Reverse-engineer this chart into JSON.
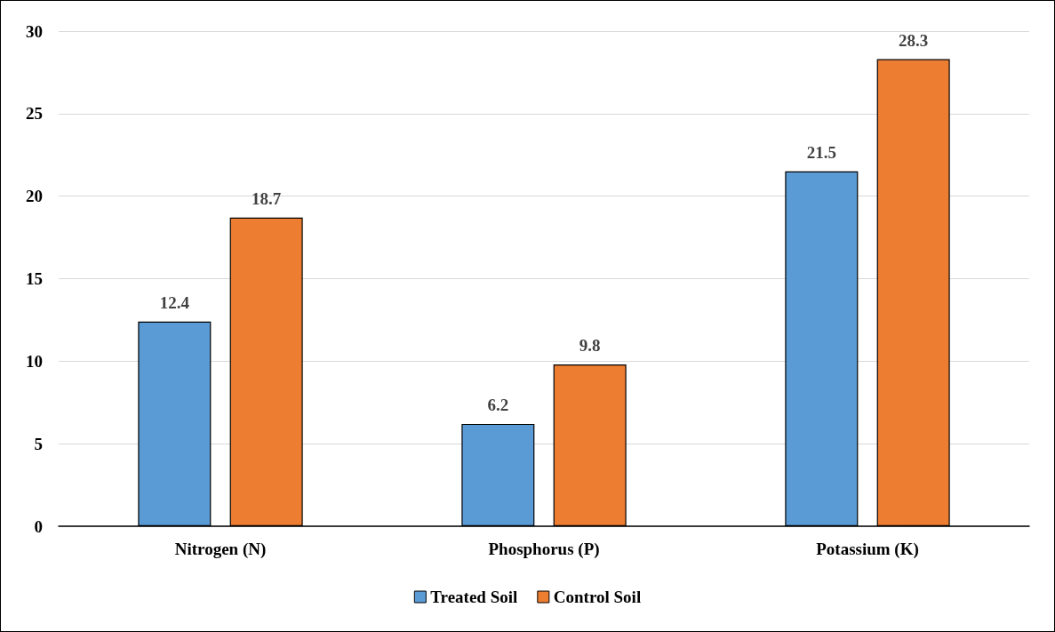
{
  "chart_data": {
    "type": "bar",
    "categories": [
      "Nitrogen (N)",
      "Phosphorus (P)",
      "Potassium (K)"
    ],
    "series": [
      {
        "name": "Treated Soil",
        "color": "#5b9bd5",
        "values": [
          12.4,
          6.2,
          21.5
        ]
      },
      {
        "name": "Control Soil",
        "color": "#ed7d31",
        "values": [
          18.7,
          9.8,
          28.3
        ]
      }
    ],
    "ylim": [
      0,
      30
    ],
    "yticks": [
      0,
      5,
      10,
      15,
      20,
      25,
      30
    ],
    "grid": "y",
    "legend": "bottom",
    "data_labels": true
  }
}
